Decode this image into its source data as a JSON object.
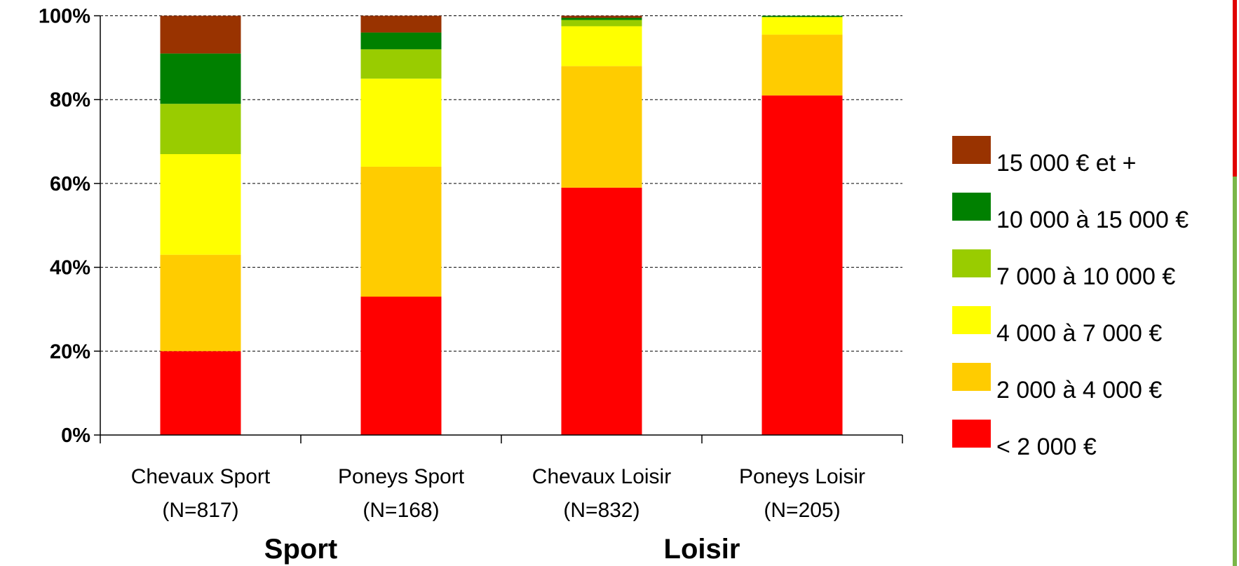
{
  "chart_data": {
    "type": "stacked_bar",
    "categories": [
      "Chevaux Sport\n(N=817)",
      "Poneys Sport\n(N=168)",
      "Chevaux Loisir\n(N=832)",
      "Poneys Loisir\n(N=205)"
    ],
    "groups": [
      "Sport",
      "Loisir"
    ],
    "series": [
      {
        "name": "< 2 000 €",
        "color": "#ff0000",
        "values": [
          20,
          33,
          59,
          81
        ]
      },
      {
        "name": "2 000 à  4 000 €",
        "color": "#ffcc00",
        "values": [
          23,
          31,
          29,
          14.5
        ]
      },
      {
        "name": "4 000 à 7 000 €",
        "color": "#ffff00",
        "values": [
          24,
          21,
          9.5,
          4.2
        ]
      },
      {
        "name": "7 000 à 10 000 €",
        "color": "#99cc00",
        "values": [
          12,
          7,
          1.5,
          0
        ]
      },
      {
        "name": "10 000 à 15 000 €",
        "color": "#008000",
        "values": [
          12,
          4,
          0.5,
          0.3
        ]
      },
      {
        "name": "15 000 € et +",
        "color": "#993300",
        "values": [
          9,
          4,
          0.5,
          0
        ]
      }
    ],
    "ylim": [
      0,
      100
    ],
    "yticks": [
      {
        "value": 0,
        "label": "0%"
      },
      {
        "value": 20,
        "label": "20%"
      },
      {
        "value": 40,
        "label": "40%"
      },
      {
        "value": 60,
        "label": "60%"
      },
      {
        "value": 80,
        "label": "80%"
      },
      {
        "value": 100,
        "label": "100%"
      }
    ],
    "grid": true
  }
}
